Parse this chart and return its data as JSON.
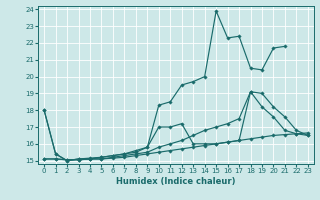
{
  "xlabel": "Humidex (Indice chaleur)",
  "xlim": [
    -0.5,
    23.5
  ],
  "ylim": [
    14.8,
    24.2
  ],
  "yticks": [
    15,
    16,
    17,
    18,
    19,
    20,
    21,
    22,
    23,
    24
  ],
  "xticks": [
    0,
    1,
    2,
    3,
    4,
    5,
    6,
    7,
    8,
    9,
    10,
    11,
    12,
    13,
    14,
    15,
    16,
    17,
    18,
    19,
    20,
    21,
    22,
    23
  ],
  "bg_color": "#cde8e8",
  "grid_color": "#b0d4d4",
  "line_color": "#1a6b6b",
  "lines": [
    {
      "x": [
        0,
        1,
        2,
        3,
        4,
        5,
        6,
        7,
        8,
        9,
        10,
        11,
        12,
        13,
        14,
        15,
        16,
        17,
        18,
        19,
        20,
        21,
        22,
        23
      ],
      "y": [
        15.1,
        15.1,
        15.05,
        15.05,
        15.1,
        15.1,
        15.15,
        15.2,
        15.3,
        15.4,
        15.5,
        15.6,
        15.7,
        15.8,
        15.9,
        16.0,
        16.1,
        16.2,
        16.3,
        16.4,
        16.5,
        16.55,
        16.6,
        16.65
      ]
    },
    {
      "x": [
        0,
        1,
        2,
        3,
        4,
        5,
        6,
        7,
        8,
        9,
        10,
        11,
        12,
        13,
        14,
        15,
        16,
        17,
        18,
        19,
        20,
        21,
        22,
        23
      ],
      "y": [
        15.1,
        15.1,
        15.05,
        15.05,
        15.1,
        15.1,
        15.2,
        15.3,
        15.4,
        15.5,
        15.8,
        16.0,
        16.2,
        16.5,
        16.8,
        17.0,
        17.2,
        17.5,
        19.1,
        19.0,
        18.2,
        17.6,
        16.8,
        16.5
      ]
    },
    {
      "x": [
        0,
        1,
        2,
        3,
        4,
        5,
        6,
        7,
        8,
        9,
        10,
        11,
        12,
        13,
        14,
        15,
        16,
        17,
        18,
        19,
        20,
        21
      ],
      "y": [
        18.0,
        15.4,
        15.0,
        15.1,
        15.15,
        15.2,
        15.3,
        15.4,
        15.6,
        15.8,
        18.3,
        18.5,
        19.5,
        19.7,
        20.0,
        23.9,
        22.3,
        22.4,
        20.5,
        20.4,
        21.7,
        21.8
      ]
    },
    {
      "x": [
        0,
        1,
        2,
        3,
        4,
        5,
        6,
        7,
        8,
        9,
        10,
        11,
        12,
        13,
        14,
        15,
        16,
        17,
        18,
        19,
        20,
        21,
        22,
        23
      ],
      "y": [
        18.0,
        15.4,
        15.0,
        15.1,
        15.1,
        15.2,
        15.3,
        15.4,
        15.5,
        15.8,
        17.0,
        17.0,
        17.2,
        16.0,
        16.0,
        16.0,
        16.1,
        16.2,
        19.1,
        18.2,
        17.6,
        16.8,
        16.6,
        16.5
      ]
    }
  ]
}
